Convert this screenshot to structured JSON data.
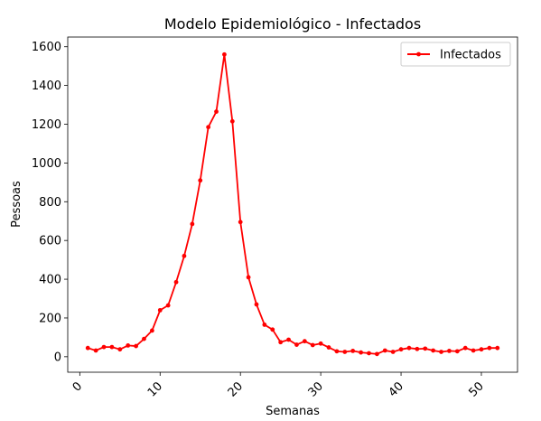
{
  "chart_data": {
    "type": "line",
    "title": "Modelo Epidemiológico - Infectados",
    "xlabel": "Semanas",
    "ylabel": "Pessoas",
    "xlim": [
      -1.5,
      54.5
    ],
    "ylim": [
      -80,
      1650
    ],
    "xticks": [
      0,
      10,
      20,
      30,
      40,
      50
    ],
    "yticks": [
      0,
      200,
      400,
      600,
      800,
      1000,
      1200,
      1400,
      1600
    ],
    "grid": false,
    "legend_position": "top-right",
    "series": [
      {
        "name": "Infectados",
        "color": "#ff0000",
        "marker": "circle",
        "x": [
          1,
          2,
          3,
          4,
          5,
          6,
          7,
          8,
          9,
          10,
          11,
          12,
          13,
          14,
          15,
          16,
          17,
          18,
          19,
          20,
          21,
          22,
          23,
          24,
          25,
          26,
          27,
          28,
          29,
          30,
          31,
          32,
          33,
          34,
          35,
          36,
          37,
          38,
          39,
          40,
          41,
          42,
          43,
          44,
          45,
          46,
          47,
          48,
          49,
          50,
          51,
          52
        ],
        "y": [
          45,
          32,
          50,
          50,
          38,
          58,
          55,
          92,
          135,
          240,
          265,
          385,
          520,
          685,
          910,
          1185,
          1265,
          1560,
          1215,
          695,
          410,
          270,
          165,
          140,
          75,
          88,
          62,
          80,
          60,
          68,
          48,
          28,
          25,
          30,
          22,
          18,
          14,
          32,
          25,
          38,
          45,
          40,
          42,
          32,
          25,
          30,
          28,
          45,
          32,
          38,
          45,
          45
        ]
      }
    ]
  }
}
